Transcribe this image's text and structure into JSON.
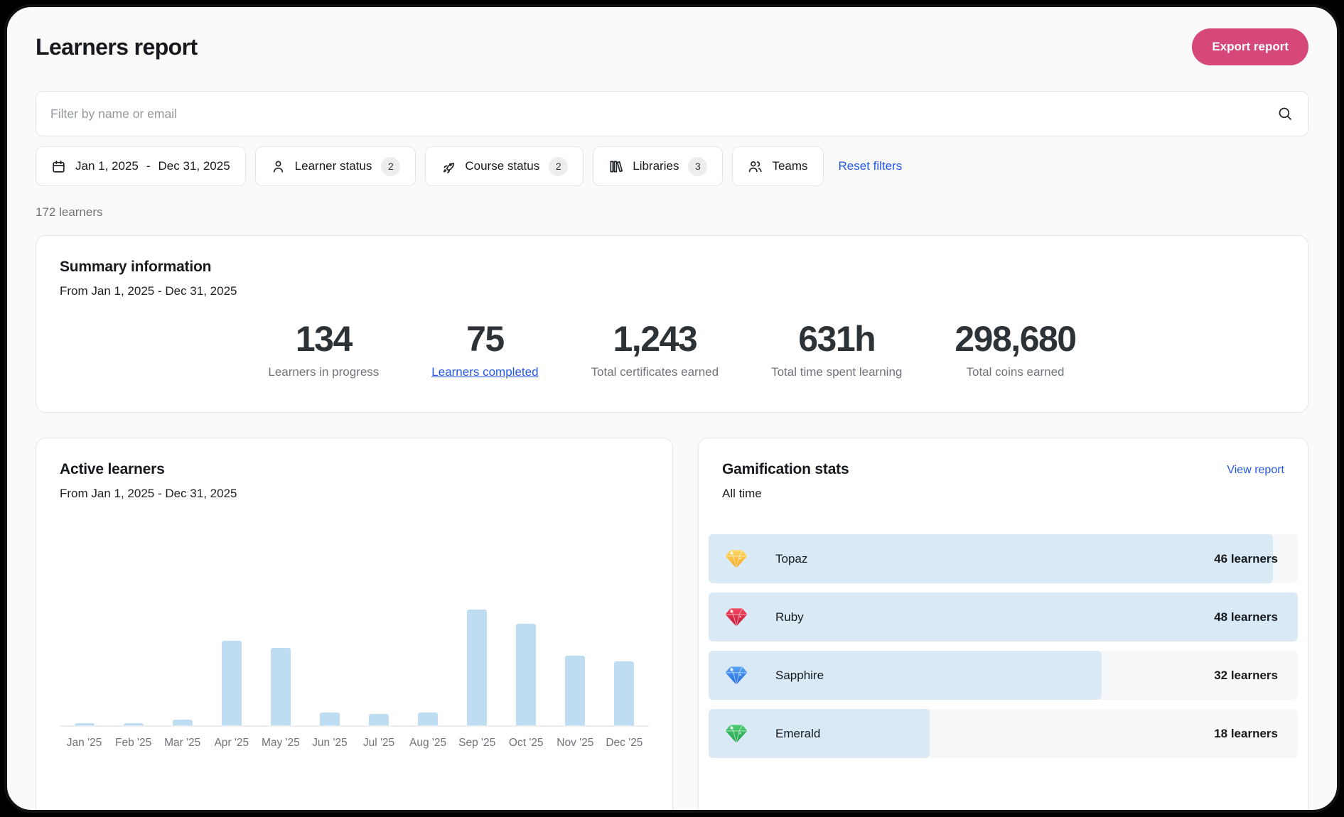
{
  "header": {
    "title": "Learners report",
    "export_label": "Export report"
  },
  "search": {
    "placeholder": "Filter by name or email",
    "icon": "search-icon"
  },
  "filters": {
    "date_range": {
      "icon": "calendar-icon",
      "start": "Jan 1, 2025",
      "separator": "-",
      "end": "Dec 31, 2025"
    },
    "chips": [
      {
        "icon": "person-icon",
        "label": "Learner status",
        "count": "2"
      },
      {
        "icon": "rocket-icon",
        "label": "Course status",
        "count": "2"
      },
      {
        "icon": "library-icon",
        "label": "Libraries",
        "count": "3"
      },
      {
        "icon": "users-icon",
        "label": "Teams",
        "count": ""
      }
    ],
    "reset_label": "Reset filters"
  },
  "results_count": "172 learners",
  "summary": {
    "title": "Summary information",
    "subtitle": "From Jan 1, 2025 - Dec 31, 2025",
    "stats": [
      {
        "value": "134",
        "label": "Learners in progress",
        "link": false
      },
      {
        "value": "75",
        "label": "Learners completed",
        "link": true
      },
      {
        "value": "1,243",
        "label": "Total certificates earned",
        "link": false
      },
      {
        "value": "631h",
        "label": "Total time spent learning",
        "link": false
      },
      {
        "value": "298,680",
        "label": "Total coins earned",
        "link": false
      }
    ]
  },
  "active_learners": {
    "title": "Active learners",
    "subtitle": "From Jan 1, 2025 - Dec 31, 2025"
  },
  "gamification": {
    "title": "Gamification stats",
    "subtitle": "All time",
    "link_label": "View report",
    "max_learners": 48,
    "rows": [
      {
        "gem": "topaz",
        "label": "Topaz",
        "value": 46,
        "value_label": "46 learners",
        "gem_colors": [
          "#ffd965",
          "#f2a51d"
        ]
      },
      {
        "gem": "ruby",
        "label": "Ruby",
        "value": 48,
        "value_label": "48 learners",
        "gem_colors": [
          "#f0485e",
          "#c21332"
        ]
      },
      {
        "gem": "sapphire",
        "label": "Sapphire",
        "value": 32,
        "value_label": "32 learners",
        "gem_colors": [
          "#58a6f7",
          "#1b63d8"
        ]
      },
      {
        "gem": "emerald",
        "label": "Emerald",
        "value": 18,
        "value_label": "18 learners",
        "gem_colors": [
          "#4fcd74",
          "#1c9e4b"
        ]
      }
    ]
  },
  "chart_data": [
    {
      "type": "bar",
      "title": "Active learners",
      "subtitle": "From Jan 1, 2025 - Dec 31, 2025",
      "categories": [
        "Jan '25",
        "Feb '25",
        "Mar '25",
        "Apr '25",
        "May '25",
        "Jun '25",
        "Jul '25",
        "Aug '25",
        "Sep '25",
        "Oct '25",
        "Nov '25",
        "Dec '25"
      ],
      "values": [
        2,
        2,
        5,
        73,
        67,
        11,
        10,
        11,
        100,
        88,
        60,
        55
      ],
      "units": "percent of tallest bar (y-axis unlabeled in UI; values estimated from bar heights)",
      "xlabel": "",
      "ylabel": "",
      "ylim": [
        0,
        100
      ],
      "grid": false,
      "legend": null,
      "bar_color": "#bfddf2"
    },
    {
      "type": "bar",
      "orientation": "horizontal",
      "title": "Gamification stats",
      "subtitle": "All time",
      "categories": [
        "Topaz",
        "Ruby",
        "Sapphire",
        "Emerald"
      ],
      "values": [
        46,
        48,
        32,
        18
      ],
      "units": "learners",
      "xlim": [
        0,
        48
      ],
      "grid": false,
      "legend": null,
      "bar_color": "#d9eaf6"
    }
  ],
  "colors": {
    "accent_pink": "#d6487a",
    "link_blue": "#2457e6",
    "chart_bar_blue": "#bfddf2",
    "gami_fill_blue": "#d9eaf6",
    "gami_track_gray": "#f7f8f9",
    "page_bg": "#fafafa",
    "card_border": "#e4e6e9",
    "text_dark": "#17191c",
    "text_gray": "#6f747a"
  }
}
